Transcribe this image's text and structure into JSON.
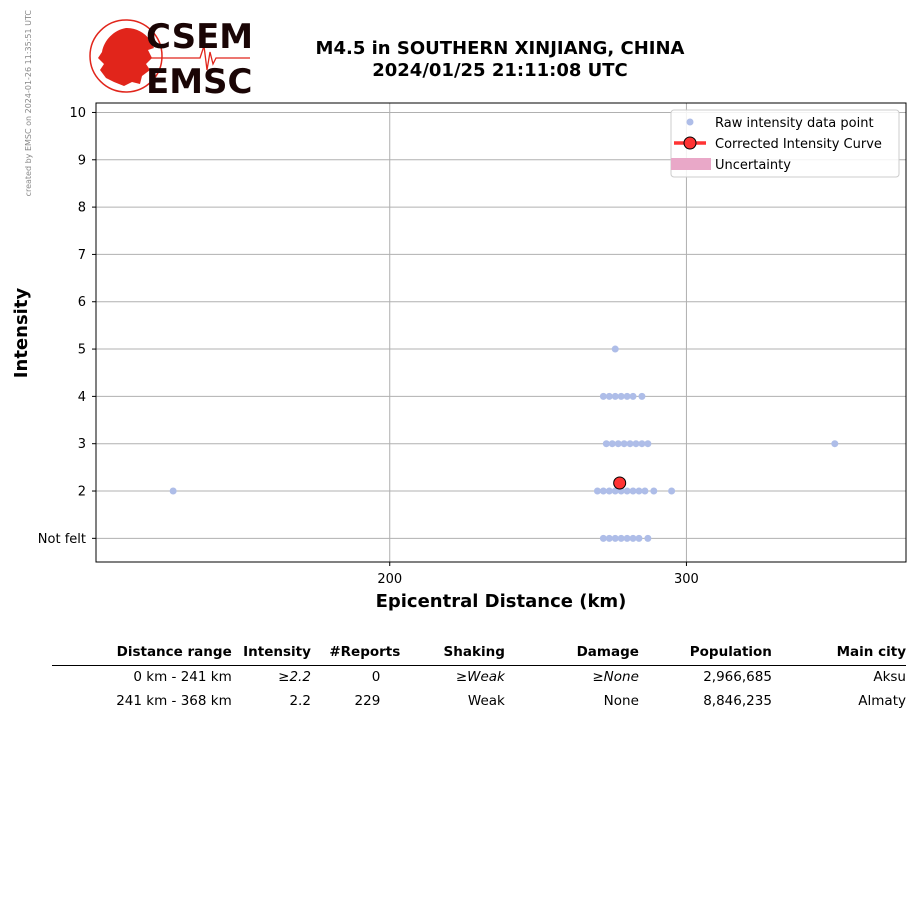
{
  "side_note": "created by EMSC on 2024-01-26 11:35:51 UTC",
  "logo": {
    "top": "CSEM",
    "bottom": "EMSC"
  },
  "header": {
    "title_line1": "M4.5 in SOUTHERN XINJIANG, CHINA",
    "title_line2": "2024/01/25 21:11:08 UTC"
  },
  "colors": {
    "raw_points": "#aebde8",
    "corrected_curve": "#ff3333",
    "uncertainty": "#e9a8c8",
    "grid": "#b0b0b0"
  },
  "chart_data": {
    "type": "scatter",
    "xlabel": "Epicentral Distance (km)",
    "ylabel": "Intensity",
    "xlim": [
      101,
      374
    ],
    "ylim": [
      0.5,
      10.2
    ],
    "xticks": [
      200,
      300
    ],
    "yticks": [
      {
        "value": 1,
        "label": "Not felt"
      },
      {
        "value": 2,
        "label": "2"
      },
      {
        "value": 3,
        "label": "3"
      },
      {
        "value": 4,
        "label": "4"
      },
      {
        "value": 5,
        "label": "5"
      },
      {
        "value": 6,
        "label": "6"
      },
      {
        "value": 7,
        "label": "7"
      },
      {
        "value": 8,
        "label": "8"
      },
      {
        "value": 9,
        "label": "9"
      },
      {
        "value": 10,
        "label": "10"
      }
    ],
    "grid": true,
    "legend_position": "top-right",
    "legend": [
      {
        "label": "Raw intensity data point",
        "marker": "dot"
      },
      {
        "label": "Corrected Intensity Curve",
        "marker": "line-circle"
      },
      {
        "label": "Uncertainty",
        "marker": "band"
      }
    ],
    "series": [
      {
        "name": "Raw intensity data point",
        "points": [
          {
            "x": 127,
            "y": 2
          },
          {
            "x": 270,
            "y": 2
          },
          {
            "x": 272,
            "y": 2
          },
          {
            "x": 274,
            "y": 2
          },
          {
            "x": 276,
            "y": 2
          },
          {
            "x": 278,
            "y": 2
          },
          {
            "x": 280,
            "y": 2
          },
          {
            "x": 282,
            "y": 2
          },
          {
            "x": 284,
            "y": 2
          },
          {
            "x": 286,
            "y": 2
          },
          {
            "x": 289,
            "y": 2
          },
          {
            "x": 295,
            "y": 2
          },
          {
            "x": 272,
            "y": 1
          },
          {
            "x": 274,
            "y": 1
          },
          {
            "x": 276,
            "y": 1
          },
          {
            "x": 278,
            "y": 1
          },
          {
            "x": 280,
            "y": 1
          },
          {
            "x": 282,
            "y": 1
          },
          {
            "x": 284,
            "y": 1
          },
          {
            "x": 287,
            "y": 1
          },
          {
            "x": 273,
            "y": 3
          },
          {
            "x": 275,
            "y": 3
          },
          {
            "x": 277,
            "y": 3
          },
          {
            "x": 279,
            "y": 3
          },
          {
            "x": 281,
            "y": 3
          },
          {
            "x": 283,
            "y": 3
          },
          {
            "x": 285,
            "y": 3
          },
          {
            "x": 287,
            "y": 3
          },
          {
            "x": 350,
            "y": 3
          },
          {
            "x": 272,
            "y": 4
          },
          {
            "x": 274,
            "y": 4
          },
          {
            "x": 276,
            "y": 4
          },
          {
            "x": 278,
            "y": 4
          },
          {
            "x": 280,
            "y": 4
          },
          {
            "x": 282,
            "y": 4
          },
          {
            "x": 285,
            "y": 4
          },
          {
            "x": 276,
            "y": 5
          }
        ]
      },
      {
        "name": "Corrected Intensity Curve",
        "points": [
          {
            "x": 277.5,
            "y": 2.17
          }
        ]
      }
    ]
  },
  "table": {
    "headers": [
      "Distance range",
      "Intensity",
      "#Reports",
      "Shaking",
      "Damage",
      "Population",
      "Main city"
    ],
    "rows": [
      [
        "0 km -  241 km",
        "≥2.2",
        "0",
        "≥Weak",
        "≥None",
        "2,966,685",
        "Aksu"
      ],
      [
        "241 km -  368 km",
        "2.2",
        "229",
        "Weak",
        "None",
        "8,846,235",
        "Almaty"
      ]
    ]
  }
}
